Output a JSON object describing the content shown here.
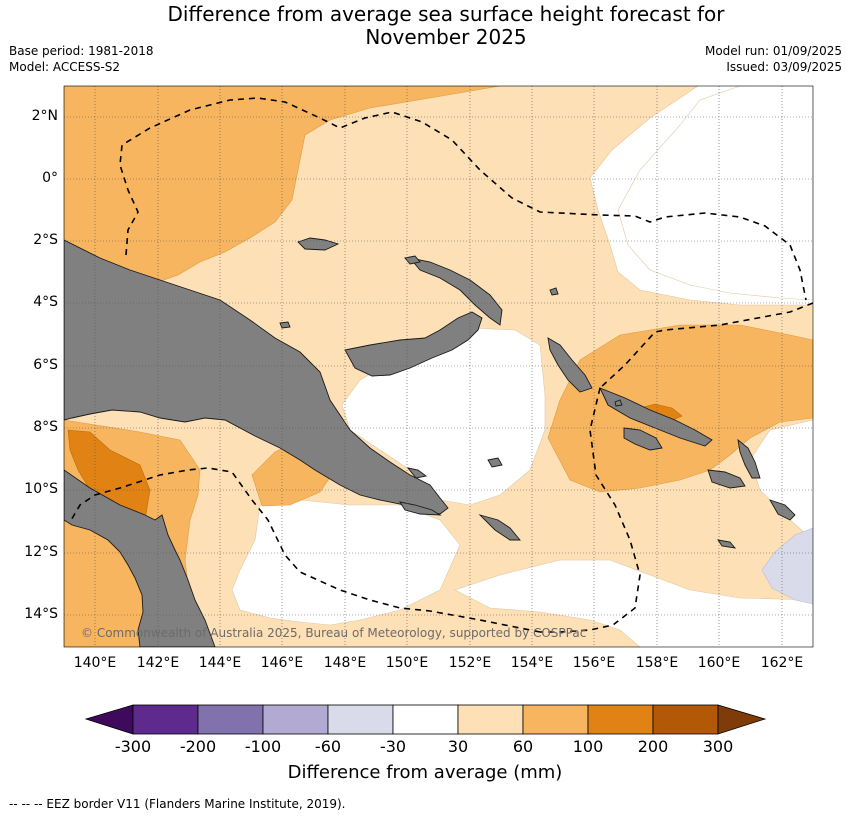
{
  "title": {
    "line1": "Difference from average sea surface height forecast for",
    "line2": "November 2025"
  },
  "meta": {
    "base_period": "Base period: 1981-2018",
    "model": "Model: ACCESS-S2",
    "model_run": "Model run: 01/09/2025",
    "issued": "Issued: 03/09/2025"
  },
  "map": {
    "lat_labels": [
      "2°N",
      "0°",
      "2°S",
      "4°S",
      "6°S",
      "8°S",
      "10°S",
      "12°S",
      "14°S"
    ],
    "lon_labels": [
      "140°E",
      "142°E",
      "144°E",
      "146°E",
      "148°E",
      "150°E",
      "152°E",
      "154°E",
      "156°E",
      "158°E",
      "160°E",
      "162°E"
    ],
    "land_color": "#808080",
    "copyright": "© Commonwealth of Australia 2025, Bureau of Meteorology, supported by COSPPac"
  },
  "colorbar": {
    "label": "Difference from average (mm)",
    "ticks": [
      "-300",
      "-200",
      "-100",
      "-60",
      "-30",
      "30",
      "60",
      "100",
      "200",
      "300"
    ],
    "colors": [
      "#3f0a5b",
      "#5e2a8e",
      "#8171ad",
      "#b2aad2",
      "#d9dbeb",
      "#ffffff",
      "#fde0b6",
      "#f8b55f",
      "#e08214",
      "#b35806",
      "#7f3b08"
    ]
  },
  "footer": {
    "eez_note": "--  --  -- EEZ border V11 (Flanders Marine Institute, 2019)."
  }
}
